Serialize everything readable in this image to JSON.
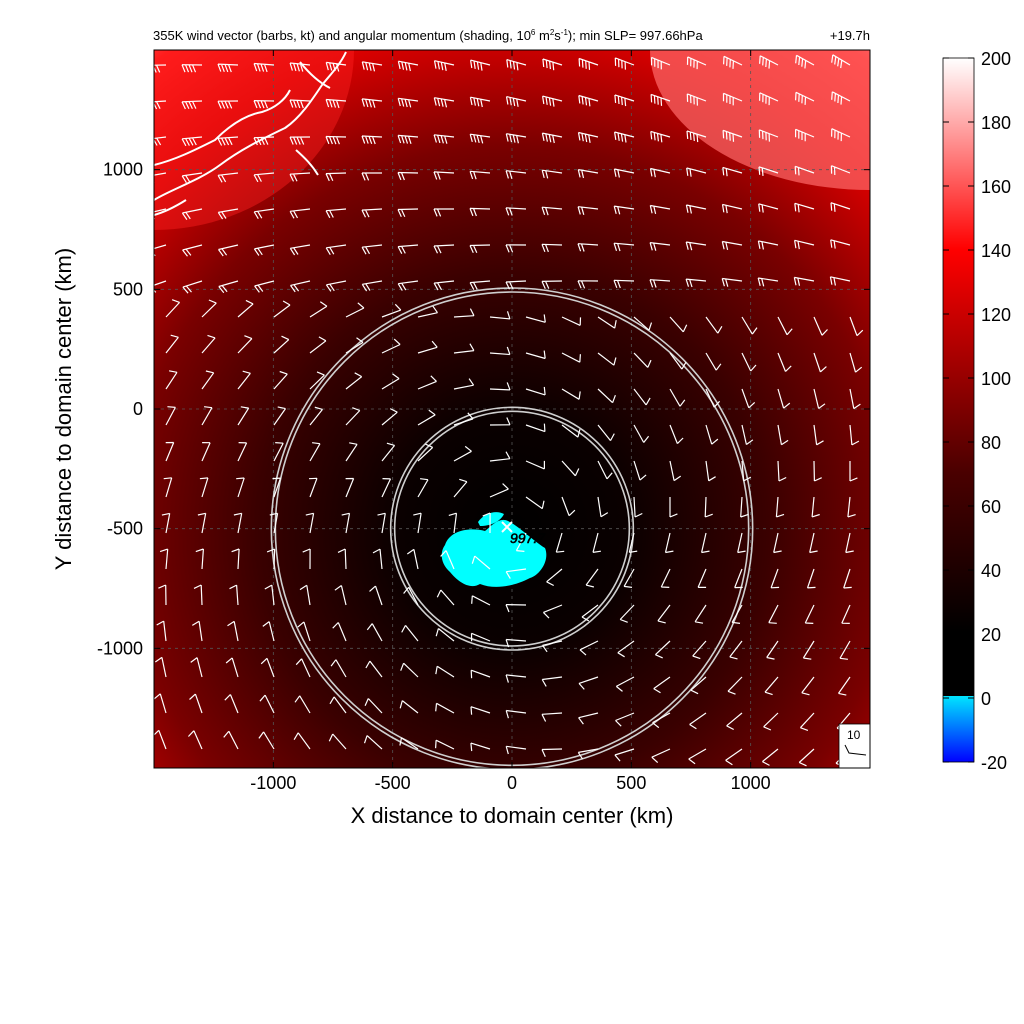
{
  "chart_data": {
    "type": "heatmap",
    "title": "355K wind vector (barbs, kt) and angular momentum (shading, 10",
    "title_sup1": "6",
    "title_mid1": " m",
    "title_sup2": "2",
    "title_mid2": "s",
    "title_sup3": "-1",
    "title_end": "); min SLP= 997.66hPa",
    "time_label": "+19.7h",
    "xlabel": "X distance to domain center (km)",
    "ylabel": "Y distance to domain center (km)",
    "xlim": [
      -1500,
      1500
    ],
    "ylim": [
      -1500,
      1500
    ],
    "xticks": [
      -1000,
      -500,
      0,
      500,
      1000
    ],
    "yticks": [
      1000,
      500,
      0,
      -500,
      -1000
    ],
    "xtick_labels": [
      "-1000",
      "-500",
      "0",
      "500",
      "1000"
    ],
    "ytick_labels": [
      "1000",
      "500",
      "0",
      "-500",
      "-1000"
    ],
    "grid": true,
    "center": {
      "x": 0,
      "y": -500
    },
    "min_slp_label": "997.7",
    "range_rings_km": [
      500,
      1000
    ],
    "colorbar": {
      "ticks": [
        200,
        180,
        160,
        140,
        120,
        100,
        80,
        60,
        40,
        20,
        0,
        -20
      ],
      "tick_labels": [
        "200",
        "180",
        "160",
        "140",
        "120",
        "100",
        "80",
        "60",
        "40",
        "20",
        "0",
        "-20"
      ],
      "range": [
        -20,
        200
      ],
      "colors": {
        "negative_low": "#0000ff",
        "negative_high": "#00e5ff",
        "zero": "#000000",
        "mid": "#ff0000",
        "high": "#ffffff"
      }
    },
    "reference_barb_label": "10",
    "colors": {
      "coastline": "#ffffff",
      "barbs": "#ffffff",
      "rings": "#cccccc",
      "negative_patch": "#00ffff"
    }
  }
}
